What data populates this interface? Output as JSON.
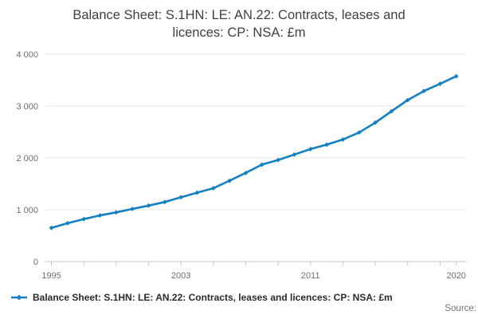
{
  "title": {
    "text": "Balance Sheet: S.1HN: LE: AN.22: Contracts, leases and licences: CP: NSA: £m",
    "line1": "Balance Sheet: S.1HN: LE: AN.22: Contracts, leases and",
    "line2": "licences: CP: NSA: £m"
  },
  "legend": {
    "label": "Balance Sheet: S.1HN: LE: AN.22: Contracts, leases and licences: CP: NSA: £m"
  },
  "source": {
    "label": "Source:"
  },
  "colors": {
    "line": "#1280c2",
    "grid": "#e6e6e6",
    "axis": "#b7c6d5",
    "tick_label": "#6e6e6e",
    "title_text": "#3f3f3f",
    "legend_text": "#2b2b2b",
    "source_text": "#757575"
  },
  "chart_data": {
    "type": "line",
    "title": "Balance Sheet: S.1HN: LE: AN.22: Contracts, leases and licences: CP: NSA: £m",
    "xlabel": "",
    "ylabel": "",
    "x": [
      1995,
      1996,
      1997,
      1998,
      1999,
      2000,
      2001,
      2002,
      2003,
      2004,
      2005,
      2006,
      2007,
      2008,
      2009,
      2010,
      2011,
      2012,
      2013,
      2014,
      2015,
      2016,
      2017,
      2018,
      2019,
      2020
    ],
    "series": [
      {
        "name": "Balance Sheet: S.1HN: LE: AN.22: Contracts, leases and licences: CP: NSA: £m",
        "color": "#1280c2",
        "values": [
          650,
          740,
          820,
          890,
          950,
          1015,
          1080,
          1150,
          1240,
          1330,
          1415,
          1560,
          1710,
          1870,
          1960,
          2065,
          2170,
          2255,
          2355,
          2490,
          2680,
          2900,
          3115,
          3290,
          3430,
          3575
        ]
      }
    ],
    "xlim": [
      1995,
      2020
    ],
    "ylim": [
      0,
      4000
    ],
    "yticks": [
      {
        "value": 0,
        "label": "0"
      },
      {
        "value": 1000,
        "label": "1 000"
      },
      {
        "value": 2000,
        "label": "2 000"
      },
      {
        "value": 3000,
        "label": "3 000"
      },
      {
        "value": 4000,
        "label": "4 000"
      }
    ],
    "xticks": [
      1995,
      1997,
      1999,
      2001,
      2003,
      2005,
      2007,
      2009,
      2011,
      2013,
      2015,
      2017,
      2019,
      2020
    ],
    "xtick_labels": [
      {
        "x": 1995,
        "label": "1995"
      },
      {
        "x": 2003,
        "label": "2003"
      },
      {
        "x": 2011,
        "label": "2011"
      },
      {
        "x": 2020,
        "label": "2020"
      }
    ],
    "grid": "horizontal",
    "legend_position": "bottom-left",
    "marker": "diamond"
  }
}
